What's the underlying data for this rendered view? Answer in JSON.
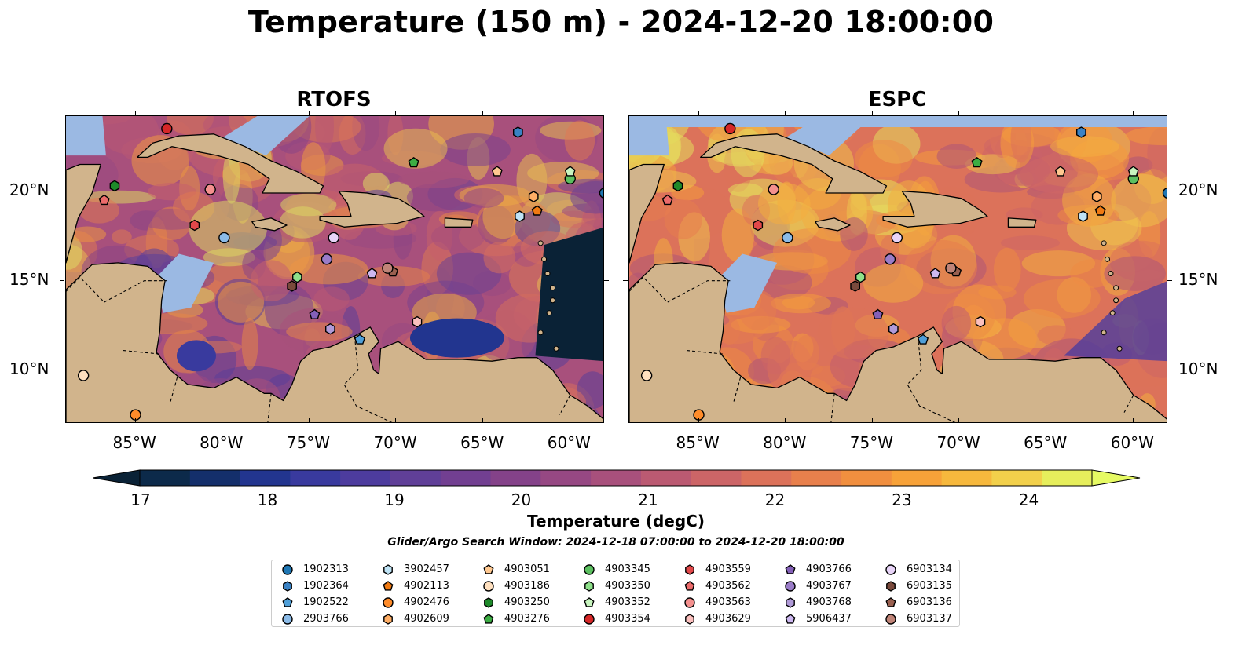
{
  "title": "Temperature (150 m) - 2024-12-20 18:00:00",
  "panels": [
    {
      "name": "RTOFS"
    },
    {
      "name": "ESPC"
    }
  ],
  "lon_ticks": [
    "85°W",
    "80°W",
    "75°W",
    "70°W",
    "65°W",
    "60°W"
  ],
  "lat_ticks": [
    "20°N",
    "15°N",
    "10°N"
  ],
  "colorbar": {
    "label": "Temperature (degC)",
    "ticks": [
      "17",
      "18",
      "19",
      "20",
      "21",
      "22",
      "23",
      "24"
    ],
    "colors": [
      "#0c2a4a",
      "#142f6b",
      "#22358f",
      "#393a9e",
      "#4d3c9e",
      "#603f98",
      "#723f91",
      "#844289",
      "#964883",
      "#a8507c",
      "#bb5a72",
      "#cc6567",
      "#dc725a",
      "#e8804c",
      "#f18f3f",
      "#f7a239",
      "#f6b83d",
      "#f2d04b",
      "#e6ee5c"
    ],
    "extend_low_color": "#0a2236",
    "extend_high_color": "#e6fa64"
  },
  "search_window": "Glider/Argo Search Window: 2024-12-18 07:00:00 to 2024-12-20 18:00:00",
  "legend": [
    {
      "id": "1902313",
      "marker": "circle",
      "color": "#1f77b4"
    },
    {
      "id": "1902364",
      "marker": "hexagon",
      "color": "#3a82c4"
    },
    {
      "id": "1902522",
      "marker": "pentagon",
      "color": "#4f9fd8"
    },
    {
      "id": "2903766",
      "marker": "circle",
      "color": "#8bbbe8"
    },
    {
      "id": "3902457",
      "marker": "hexagon",
      "color": "#bfe3f5"
    },
    {
      "id": "4902113",
      "marker": "pentagon",
      "color": "#f07a12"
    },
    {
      "id": "4902476",
      "marker": "circle",
      "color": "#ff8c2a"
    },
    {
      "id": "4902609",
      "marker": "hexagon",
      "color": "#ffae66"
    },
    {
      "id": "4903051",
      "marker": "pentagon",
      "color": "#ffc890"
    },
    {
      "id": "4903186",
      "marker": "circle",
      "color": "#ffe0bf"
    },
    {
      "id": "4903250",
      "marker": "hexagon",
      "color": "#1e8a2a"
    },
    {
      "id": "4903276",
      "marker": "pentagon",
      "color": "#3cad43"
    },
    {
      "id": "4903345",
      "marker": "circle",
      "color": "#5cc060"
    },
    {
      "id": "4903350",
      "marker": "hexagon",
      "color": "#8ee08a"
    },
    {
      "id": "4903352",
      "marker": "pentagon",
      "color": "#c8f5bf"
    },
    {
      "id": "4903354",
      "marker": "circle",
      "color": "#d62728"
    },
    {
      "id": "4903559",
      "marker": "hexagon",
      "color": "#e3484a"
    },
    {
      "id": "4903562",
      "marker": "pentagon",
      "color": "#ec6b6b"
    },
    {
      "id": "4903563",
      "marker": "circle",
      "color": "#f4908e"
    },
    {
      "id": "4903629",
      "marker": "hexagon",
      "color": "#fbc0be"
    },
    {
      "id": "4903766",
      "marker": "pentagon",
      "color": "#8460b8"
    },
    {
      "id": "4903767",
      "marker": "circle",
      "color": "#9a7cc8"
    },
    {
      "id": "4903768",
      "marker": "hexagon",
      "color": "#b09ad8"
    },
    {
      "id": "5906437",
      "marker": "pentagon",
      "color": "#cdb8f0"
    },
    {
      "id": "6903134",
      "marker": "circle",
      "color": "#e8d4f8"
    },
    {
      "id": "6903135",
      "marker": "hexagon",
      "color": "#7a4a3c"
    },
    {
      "id": "6903136",
      "marker": "pentagon",
      "color": "#9a6050"
    },
    {
      "id": "6903137",
      "marker": "circle",
      "color": "#c08478"
    }
  ],
  "colors": {
    "land": "#d1b48c",
    "shallow_water": "#9bb9e3",
    "deep_cold": "#0a2236"
  },
  "floats": [
    {
      "id": "1902313",
      "lon": -58.0,
      "lat": 19.9
    },
    {
      "id": "1902364",
      "lon": -63.0,
      "lat": 23.3
    },
    {
      "id": "1902522",
      "lon": -72.1,
      "lat": 11.7
    },
    {
      "id": "2903766",
      "lon": -79.9,
      "lat": 17.4
    },
    {
      "id": "3902457",
      "lon": -62.9,
      "lat": 18.6
    },
    {
      "id": "4902113",
      "lon": -61.9,
      "lat": 18.9
    },
    {
      "id": "4902476",
      "lon": -85.0,
      "lat": 7.5
    },
    {
      "id": "4902609",
      "lon": -62.1,
      "lat": 19.7
    },
    {
      "id": "4903051",
      "lon": -64.2,
      "lat": 21.1
    },
    {
      "id": "4903186",
      "lon": -88.0,
      "lat": 9.7
    },
    {
      "id": "4903250",
      "lon": -86.2,
      "lat": 20.3
    },
    {
      "id": "4903276",
      "lon": -69.0,
      "lat": 21.6
    },
    {
      "id": "4903345",
      "lon": -60.0,
      "lat": 20.7
    },
    {
      "id": "4903350",
      "lon": -75.7,
      "lat": 15.2
    },
    {
      "id": "4903352",
      "lon": -60.0,
      "lat": 21.1
    },
    {
      "id": "4903354",
      "lon": -83.2,
      "lat": 23.5
    },
    {
      "id": "4903559",
      "lon": -81.6,
      "lat": 18.1
    },
    {
      "id": "4903562",
      "lon": -86.8,
      "lat": 19.5
    },
    {
      "id": "4903563",
      "lon": -80.7,
      "lat": 20.1
    },
    {
      "id": "4903629",
      "lon": -68.8,
      "lat": 12.7
    },
    {
      "id": "4903766",
      "lon": -74.7,
      "lat": 13.1
    },
    {
      "id": "4903767",
      "lon": -74.0,
      "lat": 16.2
    },
    {
      "id": "4903768",
      "lon": -73.8,
      "lat": 12.3
    },
    {
      "id": "5906437",
      "lon": -71.4,
      "lat": 15.4
    },
    {
      "id": "6903134",
      "lon": -73.6,
      "lat": 17.4
    },
    {
      "id": "6903135",
      "lon": -76.0,
      "lat": 14.7
    },
    {
      "id": "6903136",
      "lon": -70.2,
      "lat": 15.5
    },
    {
      "id": "6903137",
      "lon": -70.5,
      "lat": 15.7
    }
  ]
}
